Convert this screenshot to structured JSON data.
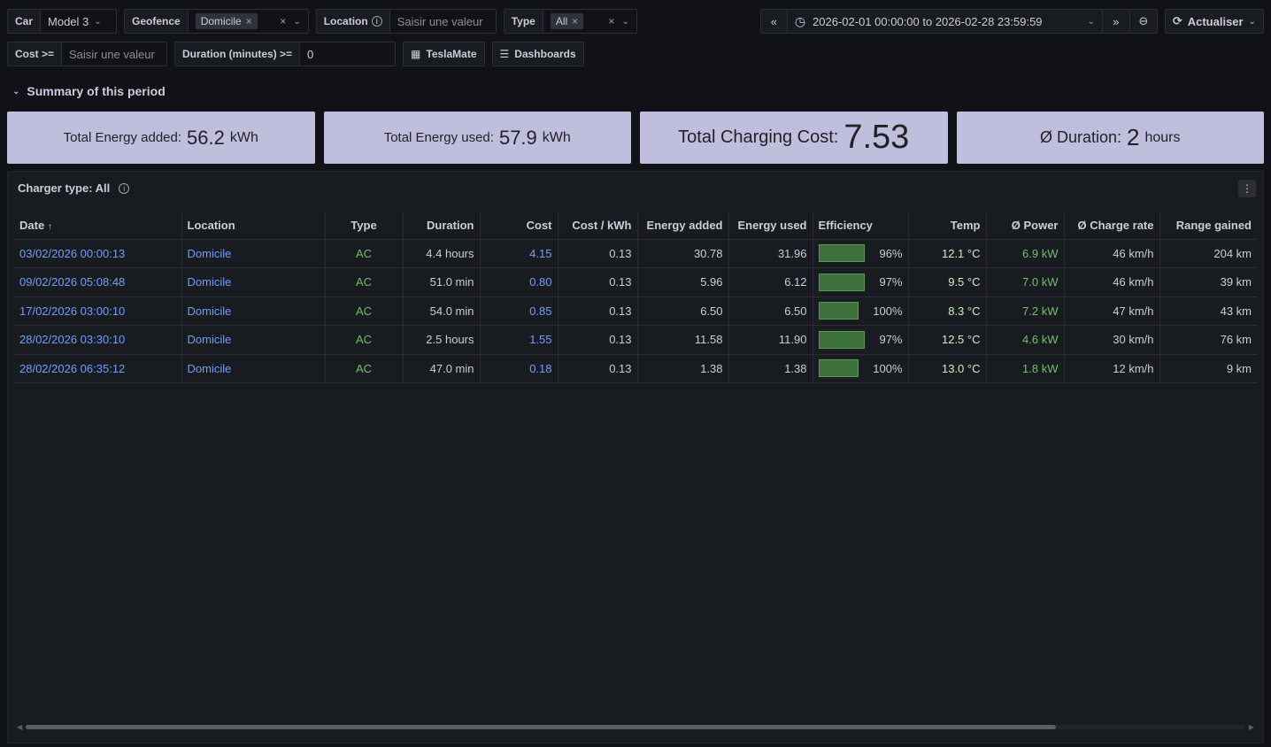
{
  "filters": {
    "car": {
      "label": "Car",
      "value": "Model 3"
    },
    "geofence": {
      "label": "Geofence",
      "chip": "Domicile"
    },
    "location": {
      "label": "Location",
      "placeholder": "Saisir une valeur"
    },
    "type": {
      "label": "Type",
      "chip": "All"
    },
    "cost": {
      "label": "Cost >=",
      "placeholder": "Saisir une valeur"
    },
    "duration": {
      "label": "Duration (minutes) >=",
      "value": "0"
    }
  },
  "links": {
    "teslamate": "TeslaMate",
    "dashboards": "Dashboards"
  },
  "time": {
    "range": "2026-02-01 00:00:00 to 2026-02-28 23:59:59",
    "refresh": "Actualiser"
  },
  "section": {
    "title": "Summary of this period"
  },
  "stats": [
    {
      "label": "Total Energy added:",
      "value": "56.2",
      "unit": "kWh"
    },
    {
      "label": "Total Energy used:",
      "value": "57.9",
      "unit": "kWh"
    },
    {
      "label": "Total Charging Cost:",
      "value": "7.53",
      "unit": ""
    },
    {
      "label": "Ø Duration:",
      "value": "2",
      "unit": "hours"
    }
  ],
  "panel": {
    "title": "Charger type: All"
  },
  "table": {
    "headers": [
      "Date",
      "Location",
      "Type",
      "Duration",
      "Cost",
      "Cost / kWh",
      "Energy added",
      "Energy used",
      "Efficiency",
      "Temp",
      "Ø Power",
      "Ø Charge rate",
      "Range gained"
    ],
    "rows": [
      {
        "date": "03/02/2026 00:00:13",
        "location": "Domicile",
        "type": "AC",
        "duration": "4.4 hours",
        "cost": "4.15",
        "cost_kwh": "0.13",
        "energy_added": "30.78",
        "energy_used": "31.96",
        "efficiency": "96%",
        "eff_frac": 0.96,
        "temp": "12.1 °C",
        "power": "6.9 kW",
        "rate": "46 km/h",
        "range": "204 km"
      },
      {
        "date": "09/02/2026 05:08:48",
        "location": "Domicile",
        "type": "AC",
        "duration": "51.0 min",
        "cost": "0.80",
        "cost_kwh": "0.13",
        "energy_added": "5.96",
        "energy_used": "6.12",
        "efficiency": "97%",
        "eff_frac": 0.97,
        "temp": "9.5 °C",
        "power": "7.0 kW",
        "rate": "46 km/h",
        "range": "39 km"
      },
      {
        "date": "17/02/2026 03:00:10",
        "location": "Domicile",
        "type": "AC",
        "duration": "54.0 min",
        "cost": "0.85",
        "cost_kwh": "0.13",
        "energy_added": "6.50",
        "energy_used": "6.50",
        "efficiency": "100%",
        "eff_frac": 1.0,
        "temp": "8.3 °C",
        "power": "7.2 kW",
        "rate": "47 km/h",
        "range": "43 km"
      },
      {
        "date": "28/02/2026 03:30:10",
        "location": "Domicile",
        "type": "AC",
        "duration": "2.5 hours",
        "cost": "1.55",
        "cost_kwh": "0.13",
        "energy_added": "11.58",
        "energy_used": "11.90",
        "efficiency": "97%",
        "eff_frac": 0.97,
        "temp": "12.5 °C",
        "power": "4.6 kW",
        "rate": "30 km/h",
        "range": "76 km"
      },
      {
        "date": "28/02/2026 06:35:12",
        "location": "Domicile",
        "type": "AC",
        "duration": "47.0 min",
        "cost": "0.18",
        "cost_kwh": "0.13",
        "energy_added": "1.38",
        "energy_used": "1.38",
        "efficiency": "100%",
        "eff_frac": 1.0,
        "temp": "13.0 °C",
        "power": "1.8 kW",
        "rate": "12 km/h",
        "range": "9 km"
      }
    ]
  }
}
